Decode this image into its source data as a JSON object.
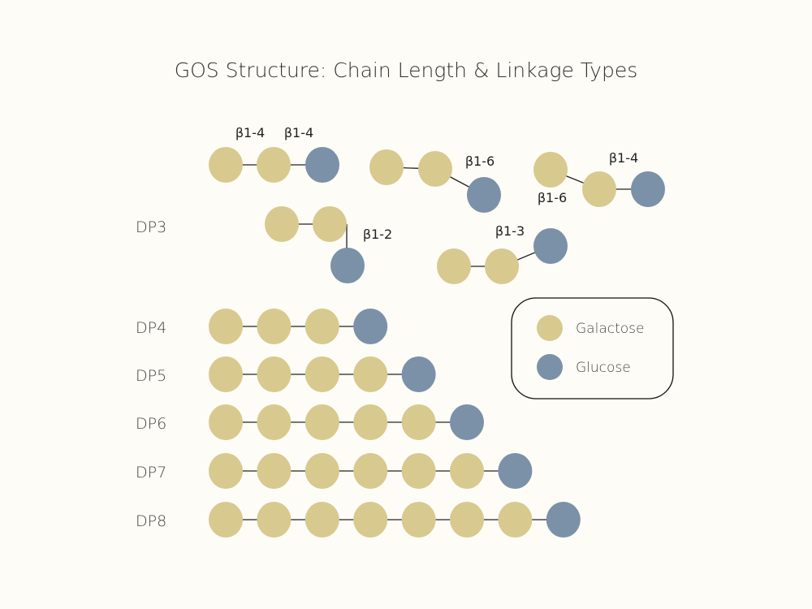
{
  "title": "GOS Structure: Chain Length & Linkage Types",
  "colors": {
    "galactose": "#d8c98e",
    "glucose": "#7a91a8",
    "link": "#222222",
    "background": "#fdfcf7"
  },
  "legend": [
    {
      "type": "galactose",
      "label": "Galactose"
    },
    {
      "type": "glucose",
      "label": "Glucose"
    }
  ],
  "dp3": {
    "label": "DP3",
    "structures": [
      {
        "residues": [
          "galactose",
          "galactose",
          "glucose"
        ],
        "linkages": [
          "β1-4",
          "β1-4"
        ]
      },
      {
        "residues": [
          "galactose",
          "galactose",
          "glucose"
        ],
        "linkages": [
          "",
          "β1-6"
        ]
      },
      {
        "residues": [
          "galactose",
          "galactose",
          "glucose"
        ],
        "linkages": [
          "β1-6",
          "β1-4"
        ]
      },
      {
        "residues": [
          "galactose",
          "galactose",
          "glucose"
        ],
        "linkages": [
          "",
          "β1-2"
        ]
      },
      {
        "residues": [
          "galactose",
          "galactose",
          "glucose"
        ],
        "linkages": [
          "",
          "β1-3"
        ]
      }
    ]
  },
  "chains": [
    {
      "label": "DP4",
      "galactose_count": 3,
      "glucose_count": 1
    },
    {
      "label": "DP5",
      "galactose_count": 4,
      "glucose_count": 1
    },
    {
      "label": "DP6",
      "galactose_count": 5,
      "glucose_count": 1
    },
    {
      "label": "DP7",
      "galactose_count": 6,
      "glucose_count": 1
    },
    {
      "label": "DP8",
      "galactose_count": 7,
      "glucose_count": 1
    }
  ]
}
